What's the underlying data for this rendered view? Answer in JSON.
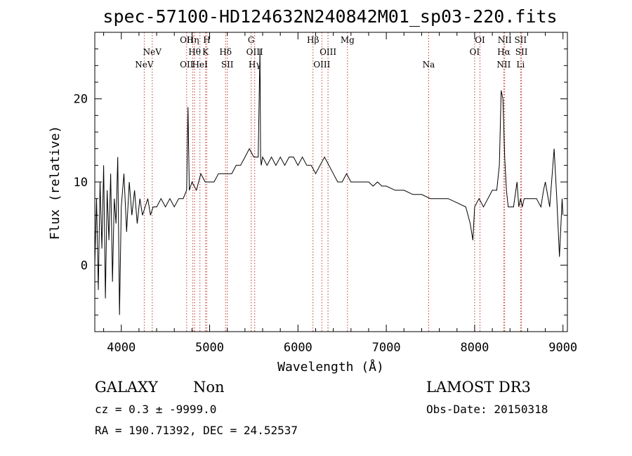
{
  "chart_data": {
    "type": "line",
    "title": "spec-57100-HD124632N240842M01_sp03-220.fits",
    "xlabel": "Wavelength (Å)",
    "ylabel": "Flux (relative)",
    "xlim": [
      3700,
      9050
    ],
    "ylim": [
      -8,
      28
    ],
    "x_ticks": [
      4000,
      5000,
      6000,
      7000,
      8000,
      9000
    ],
    "y_ticks": [
      0,
      10,
      20
    ],
    "series": [
      {
        "name": "flux",
        "x": [
          3700,
          3720,
          3740,
          3760,
          3780,
          3800,
          3820,
          3840,
          3860,
          3880,
          3900,
          3920,
          3940,
          3960,
          3980,
          4000,
          4030,
          4060,
          4090,
          4120,
          4150,
          4180,
          4210,
          4240,
          4270,
          4300,
          4330,
          4360,
          4400,
          4450,
          4500,
          4550,
          4600,
          4650,
          4700,
          4740,
          4755,
          4770,
          4800,
          4850,
          4900,
          4950,
          5000,
          5050,
          5100,
          5150,
          5200,
          5250,
          5300,
          5350,
          5400,
          5450,
          5500,
          5550,
          5570,
          5577,
          5584,
          5600,
          5650,
          5700,
          5750,
          5800,
          5850,
          5900,
          5950,
          6000,
          6050,
          6100,
          6150,
          6200,
          6250,
          6300,
          6350,
          6400,
          6450,
          6500,
          6550,
          6600,
          6650,
          6700,
          6750,
          6800,
          6850,
          6900,
          6950,
          7000,
          7100,
          7200,
          7300,
          7400,
          7500,
          7600,
          7700,
          7800,
          7900,
          7950,
          7980,
          8000,
          8050,
          8100,
          8150,
          8200,
          8250,
          8280,
          8300,
          8320,
          8340,
          8360,
          8380,
          8400,
          8440,
          8480,
          8500,
          8520,
          8540,
          8560,
          8600,
          8650,
          8700,
          8750,
          8780,
          8800,
          8850,
          8900,
          8930,
          8960,
          8990,
          9000
        ],
        "y": [
          0,
          8,
          -3,
          10,
          2,
          12,
          -4,
          9,
          3,
          11,
          -2,
          8,
          5,
          13,
          -6,
          7,
          11,
          4,
          10,
          6,
          9,
          5,
          8,
          6,
          7,
          8,
          6,
          7,
          7,
          8,
          7,
          8,
          7,
          8,
          8,
          9,
          19,
          9,
          10,
          9,
          11,
          10,
          10,
          10,
          11,
          11,
          11,
          11,
          12,
          12,
          13,
          14,
          13,
          13,
          26,
          13,
          12,
          13,
          12,
          13,
          12,
          13,
          12,
          13,
          13,
          12,
          13,
          12,
          12,
          11,
          12,
          13,
          12,
          11,
          10,
          10,
          11,
          10,
          10,
          10,
          10,
          10,
          9.5,
          10,
          9.5,
          9.5,
          9,
          9,
          8.5,
          8.5,
          8,
          8,
          8,
          7.5,
          7,
          5,
          3,
          7,
          8,
          7,
          8,
          9,
          9,
          12,
          21,
          20,
          13,
          9,
          7,
          7,
          7,
          10,
          7,
          8,
          7,
          8,
          8,
          8,
          8,
          7,
          9,
          10,
          7,
          14,
          8,
          1,
          8,
          6
        ]
      }
    ],
    "emission_lines": [
      {
        "name": "NeV",
        "wavelength": 4260,
        "row": 2
      },
      {
        "name": "NeV",
        "wavelength": 4350,
        "row": 1
      },
      {
        "name": "OII",
        "wavelength": 4740,
        "row": 2
      },
      {
        "name": "OII",
        "wavelength": 4740,
        "row": 0
      },
      {
        "name": "Hη",
        "wavelength": 4810,
        "row": 0
      },
      {
        "name": "Hθ",
        "wavelength": 4830,
        "row": 1
      },
      {
        "name": "HeI",
        "wavelength": 4890,
        "row": 2
      },
      {
        "name": "H",
        "wavelength": 4968,
        "row": 0
      },
      {
        "name": "K",
        "wavelength": 4953,
        "row": 1
      },
      {
        "name": "Hδ",
        "wavelength": 5180,
        "row": 1
      },
      {
        "name": "SII",
        "wavelength": 5200,
        "row": 2
      },
      {
        "name": "G",
        "wavelength": 5470,
        "row": 0
      },
      {
        "name": "OIII",
        "wavelength": 5510,
        "row": 1
      },
      {
        "name": "Hγ",
        "wavelength": 5510,
        "row": 2
      },
      {
        "name": "Hβ",
        "wavelength": 6170,
        "row": 0
      },
      {
        "name": "OIII",
        "wavelength": 6340,
        "row": 1
      },
      {
        "name": "OIII",
        "wavelength": 6270,
        "row": 2
      },
      {
        "name": "Mg",
        "wavelength": 6560,
        "row": 0
      },
      {
        "name": "Na",
        "wavelength": 7480,
        "row": 2
      },
      {
        "name": "OI",
        "wavelength": 8060,
        "row": 0
      },
      {
        "name": "OI",
        "wavelength": 8000,
        "row": 1
      },
      {
        "name": "NII",
        "wavelength": 8340,
        "row": 0
      },
      {
        "name": "Hα",
        "wavelength": 8330,
        "row": 1
      },
      {
        "name": "NII",
        "wavelength": 8330,
        "row": 2
      },
      {
        "name": "SII",
        "wavelength": 8520,
        "row": 0
      },
      {
        "name": "SII",
        "wavelength": 8530,
        "row": 1
      },
      {
        "name": "Li",
        "wavelength": 8520,
        "row": 2
      }
    ]
  },
  "info": {
    "class": "GALAXY",
    "subclass": "Non",
    "survey": "LAMOST  DR3",
    "cz": "cz = 0.3 ± -9999.0",
    "obs_date": "Obs-Date: 20150318",
    "coords": "RA = 190.71392, DEC =  24.52537"
  },
  "colors": {
    "spectrum": "#000000",
    "line_marker": "#c0392b",
    "axes": "#000000",
    "background": "#ffffff"
  }
}
